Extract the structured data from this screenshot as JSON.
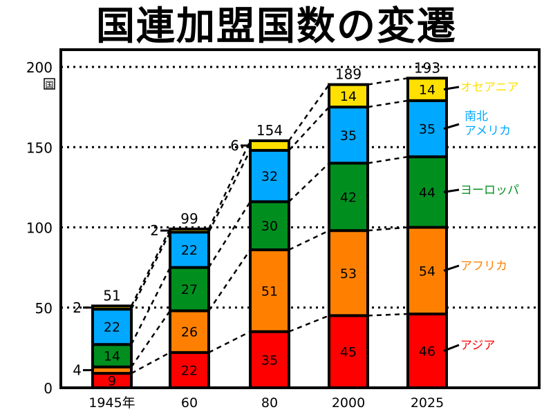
{
  "title": "国連加盟国数の変遷",
  "chart_data": {
    "type": "bar",
    "stacked": true,
    "title": "国連加盟国数の変遷",
    "xlabel": "",
    "ylabel": "国",
    "ylim": [
      0,
      200
    ],
    "yticks": [
      0,
      50,
      100,
      150,
      200
    ],
    "grid": "horizontal dotted",
    "categories": [
      "1945年",
      "60",
      "80",
      "2000",
      "2025"
    ],
    "totals": [
      51,
      99,
      154,
      189,
      193
    ],
    "series": [
      {
        "name": "アジア",
        "color": "#ff0000",
        "values": [
          9,
          22,
          35,
          45,
          46
        ]
      },
      {
        "name": "アフリカ",
        "color": "#ff8000",
        "values": [
          4,
          26,
          51,
          53,
          54
        ]
      },
      {
        "name": "ヨーロッパ",
        "color": "#008f1f",
        "values": [
          14,
          27,
          30,
          42,
          44
        ]
      },
      {
        "name": "南北アメリカ",
        "color": "#00a8ff",
        "values": [
          22,
          22,
          32,
          35,
          35
        ]
      },
      {
        "name": "オセアニア",
        "color": "#ffe000",
        "values": [
          2,
          2,
          6,
          14,
          14
        ]
      }
    ],
    "outside_labels": [
      {
        "category": "1945年",
        "series": "アフリカ",
        "text": "4"
      },
      {
        "category": "1945年",
        "series": "オセアニア",
        "text": "2"
      },
      {
        "category": "60",
        "series": "オセアニア",
        "text": "2"
      },
      {
        "category": "80",
        "series": "オセアニア",
        "text": "6"
      }
    ],
    "legend": "right side, labels pointing to 2025 bar"
  }
}
